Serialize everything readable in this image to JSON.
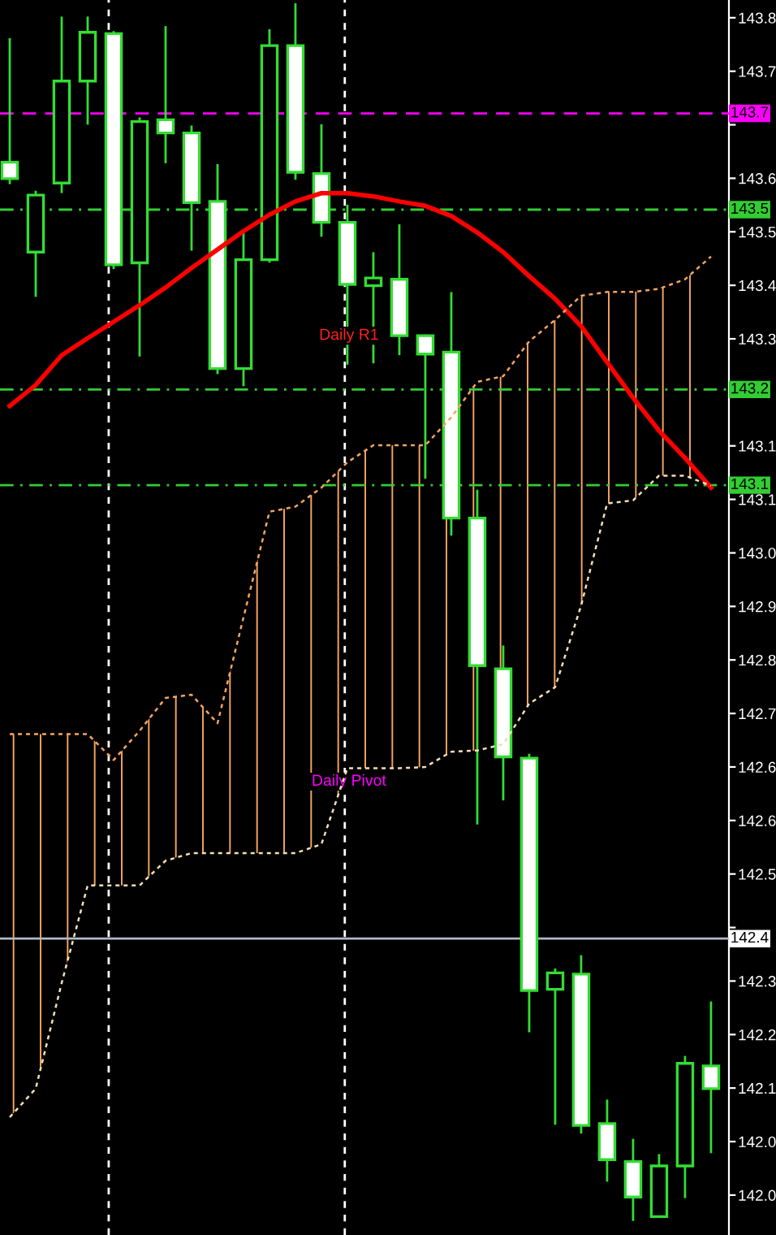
{
  "chart_data": {
    "type": "candlestick",
    "categories": [
      null,
      null,
      null,
      null,
      null,
      null,
      null,
      null,
      null,
      null,
      null,
      null,
      null,
      null,
      null,
      null,
      null,
      null,
      null,
      null,
      null,
      null,
      null,
      null,
      null,
      null,
      null,
      null
    ],
    "ohlc": [
      [
        143.594,
        143.788,
        143.561,
        143.568
      ],
      [
        143.452,
        143.547,
        143.383,
        143.542
      ],
      [
        143.561,
        143.822,
        143.547,
        143.722
      ],
      [
        143.722,
        143.822,
        143.655,
        143.799
      ],
      [
        143.797,
        143.799,
        143.427,
        143.432
      ],
      [
        143.435,
        143.663,
        143.289,
        143.658
      ],
      [
        143.661,
        143.807,
        143.594,
        143.64
      ],
      [
        143.64,
        143.65,
        143.456,
        143.53
      ],
      [
        143.532,
        143.589,
        143.261,
        143.268
      ],
      [
        143.268,
        143.483,
        143.242,
        143.44
      ],
      [
        143.44,
        143.802,
        143.437,
        143.778
      ],
      [
        143.778,
        143.843,
        143.568,
        143.578
      ],
      [
        143.576,
        143.652,
        143.478,
        143.499
      ],
      [
        143.499,
        143.525,
        143.276,
        143.401
      ],
      [
        143.399,
        143.45,
        143.278,
        143.411
      ],
      [
        143.409,
        143.494,
        143.291,
        143.32
      ],
      [
        143.32,
        143.32,
        143.096,
        143.291
      ],
      [
        143.294,
        143.387,
        143.006,
        143.032
      ],
      [
        143.032,
        143.075,
        142.55,
        142.799
      ],
      [
        142.794,
        142.829,
        142.588,
        142.655
      ],
      [
        142.653,
        142.658,
        142.222,
        142.286
      ],
      [
        142.288,
        142.319,
        142.076,
        142.314
      ],
      [
        142.312,
        142.34,
        142.062,
        142.073
      ],
      [
        142.076,
        142.112,
        141.986,
        142.019
      ],
      [
        142.016,
        142.05,
        141.924,
        141.96
      ],
      [
        141.929,
        142.026,
        141.929,
        142.009
      ],
      [
        142.009,
        142.181,
        141.96,
        142.171
      ],
      [
        142.167,
        142.267,
        142.031,
        142.131
      ]
    ],
    "color": "#33dd33",
    "colors": [
      "#ffffff",
      "#000000",
      "#000000",
      "#000000",
      "#ffffff",
      "#000000",
      "#ffffff",
      "#ffffff",
      "#ffffff",
      "#000000",
      "#000000",
      "#ffffff",
      "#ffffff",
      "#ffffff",
      "#000000",
      "#ffffff",
      "#ffffff",
      "#ffffff",
      "#ffffff",
      "#ffffff",
      "#ffffff",
      "#000000",
      "#ffffff",
      "#ffffff",
      "#ffffff",
      "#000000",
      "#000000",
      "#ffffff"
    ],
    "series": [
      {
        "type": "line",
        "color": "#ff0000",
        "values": [
          143.209,
          143.242,
          143.289,
          143.316,
          143.342,
          143.368,
          143.396,
          143.427,
          143.456,
          143.485,
          143.511,
          143.532,
          143.545,
          143.545,
          143.54,
          143.532,
          143.525,
          143.509,
          143.483,
          143.452,
          143.414,
          143.378,
          143.335,
          143.278,
          143.222,
          143.17,
          143.127,
          143.08
        ]
      },
      {
        "type": "line",
        "color": "#f4a460",
        "line_style": "dotted",
        "values": [
          142.691,
          142.691,
          142.691,
          142.691,
          142.65,
          142.696,
          142.748,
          142.753,
          142.708,
          142.875,
          143.042,
          143.05,
          143.08,
          143.12,
          143.147,
          143.147,
          143.147,
          143.191,
          143.247,
          143.256,
          143.311,
          143.345,
          143.383,
          143.389,
          143.389,
          143.394,
          143.409,
          143.445
        ],
        "upper": [
          142.691,
          142.691,
          142.691,
          142.691,
          142.65,
          142.696,
          142.748,
          142.753,
          142.708,
          142.875,
          143.042,
          143.05,
          143.08,
          143.12,
          143.147,
          143.147,
          143.147,
          143.191,
          143.247,
          143.256,
          143.311,
          143.345,
          143.383,
          143.389,
          143.389,
          143.394,
          143.409,
          143.445
        ],
        "lower": [
          142.086,
          142.131,
          142.298,
          142.452,
          142.452,
          142.452,
          142.491,
          142.503,
          142.503,
          142.503,
          142.503,
          142.503,
          142.517,
          142.637,
          142.637,
          142.637,
          142.639,
          142.663,
          142.665,
          142.675,
          142.739,
          142.765,
          142.894,
          143.055,
          143.06,
          143.099,
          143.099,
          143.083
        ]
      },
      {
        "type": "line",
        "color": "#f5deb3",
        "line_style": "dotted",
        "values": [
          142.086,
          142.131,
          142.298,
          142.452,
          142.452,
          142.452,
          142.491,
          142.503,
          142.503,
          142.503,
          142.503,
          142.503,
          142.517,
          142.637,
          142.637,
          142.637,
          142.639,
          142.663,
          142.665,
          142.675,
          142.739,
          142.765,
          142.894,
          143.055,
          143.06,
          143.099,
          143.099,
          143.083
        ]
      }
    ],
    "ylim": [
      141.9,
      143.85
    ],
    "yticks": [
      {
        "value": 143.822,
        "label": "143.8"
      },
      {
        "value": 143.7375,
        "label": "143.7"
      },
      {
        "value": 143.653,
        "label": null
      },
      {
        "value": 143.5685,
        "label": "143.6"
      },
      {
        "value": 143.484,
        "label": "143.5"
      },
      {
        "value": 143.3995,
        "label": "143.4"
      },
      {
        "value": 143.315,
        "label": "143.3"
      },
      {
        "value": 143.2305,
        "label": null
      },
      {
        "value": 143.146,
        "label": "143.1"
      },
      {
        "value": 143.0615,
        "label": "143.1"
      },
      {
        "value": 142.977,
        "label": "143.0"
      },
      {
        "value": 142.8925,
        "label": "142.9"
      },
      {
        "value": 142.808,
        "label": "142.8"
      },
      {
        "value": 142.7235,
        "label": "142.7"
      },
      {
        "value": 142.639,
        "label": "142.6"
      },
      {
        "value": 142.5545,
        "label": "142.6"
      },
      {
        "value": 142.47,
        "label": "142.5"
      },
      {
        "value": 142.3855,
        "label": null
      },
      {
        "value": 142.301,
        "label": "142.3"
      },
      {
        "value": 142.2165,
        "label": "142.2"
      },
      {
        "value": 142.132,
        "label": "142.1"
      },
      {
        "value": 142.0475,
        "label": "142.0"
      },
      {
        "value": 141.963,
        "label": "142.0"
      }
    ],
    "ref_lines": [
      {
        "axis": "y",
        "value": 143.671,
        "label": "143.7",
        "color": "#ff00ff",
        "line_style": "dashed"
      },
      {
        "axis": "y",
        "value": 143.519,
        "label": "143.5",
        "color": "#32cd32",
        "line_style": "dashdot"
      },
      {
        "axis": "y",
        "value": 143.235,
        "label": "143.2",
        "color": "#32cd32",
        "line_style": "dashdot"
      },
      {
        "axis": "y",
        "value": 143.084,
        "label": "143.1",
        "color": "#32cd32",
        "line_style": "dashdot"
      },
      {
        "axis": "y",
        "value": 142.368,
        "label": "142.4",
        "color": "#b0b8c8",
        "line_style": "solid"
      }
    ],
    "annotations": [
      "Daily R1",
      "Daily Pivot"
    ],
    "tick_labels": "y"
  }
}
